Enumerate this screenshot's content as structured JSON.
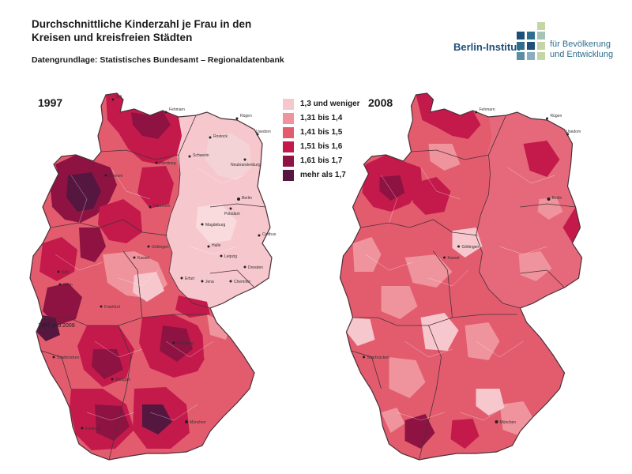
{
  "header": {
    "title_line1": "Durchschnittliche Kinderzahl je Frau in den",
    "title_line2": "Kreisen und kreisfreien Städten",
    "source": "Datengrundlage: Statistisches Bundesamt – Regionaldatenbank"
  },
  "logo": {
    "name": "Berlin-Institut",
    "sub_line1": "für Bevölkerung",
    "sub_line2": "und Entwicklung"
  },
  "maps": [
    {
      "year": "1997"
    },
    {
      "year": "2008"
    }
  ],
  "legend": {
    "items": [
      {
        "label": "1,3 und weniger",
        "color": "#f6c7cc"
      },
      {
        "label": "1,31 bis 1,4",
        "color": "#ef939c"
      },
      {
        "label": "1,41 bis 1,5",
        "color": "#e25c6e"
      },
      {
        "label": "1,51 bis 1,6",
        "color": "#c41a4b"
      },
      {
        "label": "1,61 bis 1,7",
        "color": "#8e1342"
      },
      {
        "label": "mehr als 1,7",
        "color": "#55173f"
      }
    ]
  },
  "map_labels": {
    "cities": [
      "Sylt",
      "Fehmarn",
      "Rügen",
      "Usedom",
      "Schwerin",
      "Rostock",
      "Neubrandenburg",
      "Hamburg",
      "Bremen",
      "Berlin",
      "Potsdam",
      "Magdeburg",
      "Hannover",
      "Cottbus",
      "Halle",
      "Leipzig",
      "Dresden",
      "Chemnitz",
      "Erfurt",
      "Jena",
      "Kassel",
      "Göttingen",
      "Köln",
      "Bonn",
      "Frankfurt",
      "Saarbrücken",
      "Nürnberg",
      "Stuttgart",
      "München",
      "Freiburg"
    ],
    "annotation": "1997 und 2008"
  }
}
